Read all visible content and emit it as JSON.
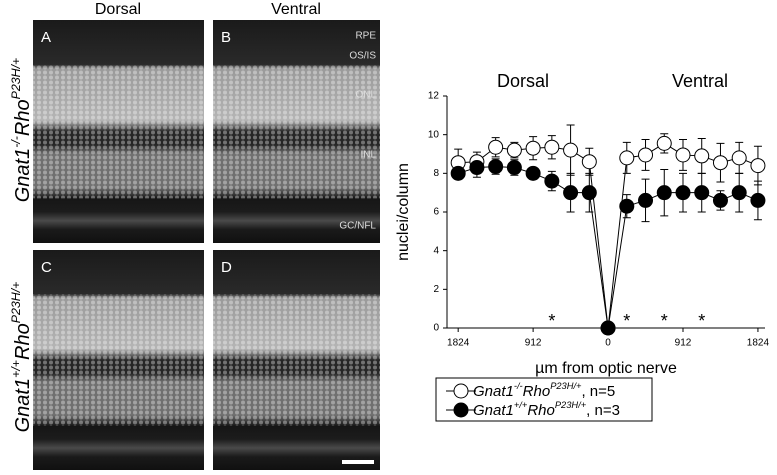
{
  "figure": {
    "columns": [
      "Dorsal",
      "Ventral"
    ],
    "panels": [
      "A",
      "B",
      "C",
      "D"
    ],
    "layers": [
      "RPE",
      "OS/IS",
      "ONL",
      "INL",
      "GC/NFL"
    ],
    "rows": [
      [
        "Gnat1",
        "-/-",
        "Rho",
        "P23H/+"
      ],
      [
        "Gnat1",
        "+/+",
        "Rho",
        "P23H/+"
      ]
    ]
  },
  "chart_data": {
    "type": "line",
    "x_label": "µm from optic nerve",
    "y_label": "nuclei/column",
    "annotations": [
      "Dorsal",
      "Ventral"
    ],
    "x": [
      -1824,
      -1596,
      -1368,
      -1140,
      -912,
      -684,
      -456,
      -228,
      0,
      228,
      456,
      684,
      912,
      1140,
      1368,
      1596,
      1824
    ],
    "series": [
      {
        "name": [
          "Gnat1",
          "-/-",
          "Rho",
          "P23H/+",
          ", n=5"
        ],
        "color": "#ffffff",
        "values": [
          8.55,
          8.6,
          9.35,
          9.2,
          9.3,
          9.35,
          9.2,
          8.6,
          0,
          8.8,
          8.95,
          9.55,
          8.95,
          8.9,
          8.55,
          8.8,
          8.4
        ],
        "errors": [
          0.7,
          0.5,
          0.5,
          0.4,
          0.6,
          0.6,
          1.3,
          0.7,
          0,
          0.8,
          0.8,
          0.5,
          0.8,
          0.9,
          1.0,
          0.8,
          1.0
        ]
      },
      {
        "name": [
          "Gnat1",
          "+/+",
          "Rho",
          "P23H/+",
          ", n=3"
        ],
        "color": "#000000",
        "values": [
          8.0,
          8.3,
          8.35,
          8.3,
          8.0,
          7.6,
          7.0,
          7.0,
          0,
          6.3,
          6.6,
          7.0,
          7.0,
          7.0,
          6.6,
          7.0,
          6.6
        ],
        "errors": [
          0.2,
          0.5,
          0.4,
          0.4,
          0.3,
          0.5,
          1.0,
          1.0,
          0,
          0.6,
          1.1,
          1.2,
          1.0,
          1.0,
          0.5,
          1.0,
          1.0
        ]
      }
    ],
    "significance_x": [
      -684,
      228,
      684,
      1140
    ],
    "significance_label": "*",
    "xlim": [
      -1960,
      1910
    ],
    "xticks": [
      {
        "value": -1824,
        "label": "1824"
      },
      {
        "value": -912,
        "label": "912"
      },
      0,
      912,
      1824
    ],
    "ylim": [
      0,
      12
    ],
    "yticks": [
      0,
      2,
      4,
      6,
      8,
      10,
      12
    ]
  }
}
